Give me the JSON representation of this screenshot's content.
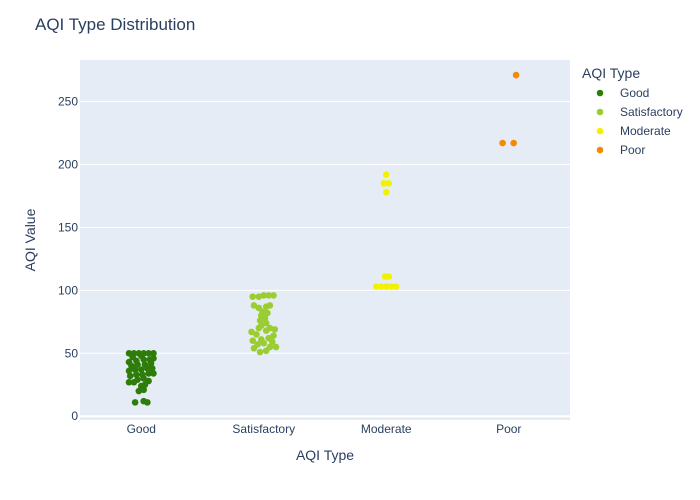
{
  "chart_data": {
    "type": "scatter",
    "title": "AQI Type Distribution",
    "xlabel": "AQI Type",
    "ylabel": "AQI Value",
    "categories": [
      "Good",
      "Satisfactory",
      "Moderate",
      "Poor"
    ],
    "yticks": [
      0,
      50,
      100,
      150,
      200,
      250
    ],
    "ylim": [
      -3,
      283
    ],
    "grid": true,
    "legend": {
      "title": "AQI Type",
      "placement": "right"
    },
    "series": [
      {
        "name": "Good",
        "category": "Good",
        "color": "#2e7d0a",
        "points": [
          {
            "y": 11,
            "jitter": -0.05
          },
          {
            "y": 12,
            "jitter": 0.02
          },
          {
            "y": 11,
            "jitter": 0.05
          },
          {
            "y": 20,
            "jitter": -0.02
          },
          {
            "y": 21,
            "jitter": 0.02
          },
          {
            "y": 24,
            "jitter": 0.0
          },
          {
            "y": 25,
            "jitter": 0.03
          },
          {
            "y": 27,
            "jitter": -0.1
          },
          {
            "y": 27,
            "jitter": -0.06
          },
          {
            "y": 28,
            "jitter": 0.06
          },
          {
            "y": 29,
            "jitter": -0.03
          },
          {
            "y": 30,
            "jitter": 0.02
          },
          {
            "y": 32,
            "jitter": -0.09
          },
          {
            "y": 33,
            "jitter": -0.04
          },
          {
            "y": 33,
            "jitter": 0.01
          },
          {
            "y": 34,
            "jitter": 0.06
          },
          {
            "y": 34,
            "jitter": 0.1
          },
          {
            "y": 36,
            "jitter": -0.1
          },
          {
            "y": 37,
            "jitter": -0.05
          },
          {
            "y": 37,
            "jitter": 0.0
          },
          {
            "y": 38,
            "jitter": 0.05
          },
          {
            "y": 38,
            "jitter": 0.09
          },
          {
            "y": 40,
            "jitter": -0.08
          },
          {
            "y": 41,
            "jitter": -0.03
          },
          {
            "y": 41,
            "jitter": 0.03
          },
          {
            "y": 42,
            "jitter": 0.08
          },
          {
            "y": 43,
            "jitter": -0.1
          },
          {
            "y": 44,
            "jitter": -0.04
          },
          {
            "y": 45,
            "jitter": 0.02
          },
          {
            "y": 45,
            "jitter": 0.07
          },
          {
            "y": 46,
            "jitter": 0.1
          },
          {
            "y": 47,
            "jitter": -0.07
          },
          {
            "y": 48,
            "jitter": 0.0
          },
          {
            "y": 50,
            "jitter": -0.1
          },
          {
            "y": 50,
            "jitter": -0.06
          },
          {
            "y": 50,
            "jitter": -0.02
          },
          {
            "y": 50,
            "jitter": 0.02
          },
          {
            "y": 50,
            "jitter": 0.06
          },
          {
            "y": 50,
            "jitter": 0.1
          }
        ]
      },
      {
        "name": "Satisfactory",
        "category": "Satisfactory",
        "color": "#9acd32",
        "points": [
          {
            "y": 51,
            "jitter": -0.03
          },
          {
            "y": 52,
            "jitter": 0.02
          },
          {
            "y": 54,
            "jitter": -0.08
          },
          {
            "y": 55,
            "jitter": 0.05
          },
          {
            "y": 55,
            "jitter": 0.1
          },
          {
            "y": 57,
            "jitter": -0.05
          },
          {
            "y": 58,
            "jitter": 0.0
          },
          {
            "y": 59,
            "jitter": 0.07
          },
          {
            "y": 60,
            "jitter": -0.09
          },
          {
            "y": 61,
            "jitter": -0.02
          },
          {
            "y": 62,
            "jitter": 0.04
          },
          {
            "y": 64,
            "jitter": 0.08
          },
          {
            "y": 65,
            "jitter": -0.06
          },
          {
            "y": 67,
            "jitter": -0.1
          },
          {
            "y": 68,
            "jitter": 0.02
          },
          {
            "y": 69,
            "jitter": 0.09
          },
          {
            "y": 70,
            "jitter": -0.04
          },
          {
            "y": 70,
            "jitter": 0.05
          },
          {
            "y": 72,
            "jitter": -0.02
          },
          {
            "y": 74,
            "jitter": 0.02
          },
          {
            "y": 76,
            "jitter": -0.03
          },
          {
            "y": 78,
            "jitter": 0.01
          },
          {
            "y": 80,
            "jitter": -0.02
          },
          {
            "y": 82,
            "jitter": 0.03
          },
          {
            "y": 83,
            "jitter": -0.01
          },
          {
            "y": 86,
            "jitter": -0.04
          },
          {
            "y": 87,
            "jitter": 0.02
          },
          {
            "y": 88,
            "jitter": -0.08
          },
          {
            "y": 88,
            "jitter": 0.05
          },
          {
            "y": 95,
            "jitter": -0.09
          },
          {
            "y": 95,
            "jitter": -0.04
          },
          {
            "y": 96,
            "jitter": 0.0
          },
          {
            "y": 96,
            "jitter": 0.04
          },
          {
            "y": 96,
            "jitter": 0.08
          }
        ]
      },
      {
        "name": "Moderate",
        "category": "Moderate",
        "color": "#f2f200",
        "points": [
          {
            "y": 103,
            "jitter": -0.08
          },
          {
            "y": 103,
            "jitter": -0.04
          },
          {
            "y": 103,
            "jitter": 0.0
          },
          {
            "y": 103,
            "jitter": 0.04
          },
          {
            "y": 103,
            "jitter": 0.08
          },
          {
            "y": 111,
            "jitter": -0.01
          },
          {
            "y": 111,
            "jitter": 0.02
          },
          {
            "y": 178,
            "jitter": 0.0
          },
          {
            "y": 185,
            "jitter": -0.02
          },
          {
            "y": 185,
            "jitter": 0.02
          },
          {
            "y": 192,
            "jitter": 0.0
          }
        ]
      },
      {
        "name": "Poor",
        "category": "Poor",
        "color": "#f28b00",
        "points": [
          {
            "y": 217,
            "jitter": -0.05
          },
          {
            "y": 217,
            "jitter": 0.04
          },
          {
            "y": 271,
            "jitter": 0.06
          }
        ]
      }
    ]
  }
}
